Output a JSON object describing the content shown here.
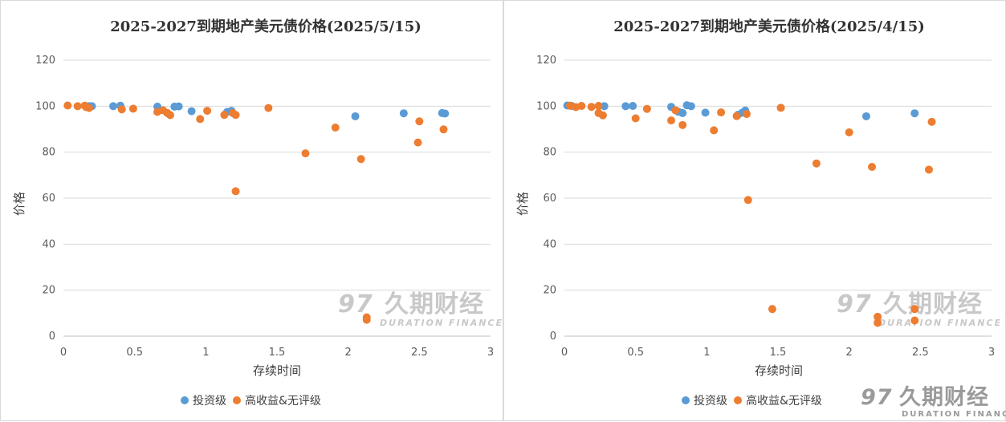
{
  "chart_data": [
    {
      "type": "scatter",
      "title": "2025-2027到期地产美元债价格(2025/5/15)",
      "xlabel": "存续时间",
      "ylabel": "价格",
      "xlim": [
        0,
        3
      ],
      "ylim": [
        0,
        120
      ],
      "xticks": [
        "0",
        "0.5",
        "1",
        "1.5",
        "2",
        "2.5",
        "3"
      ],
      "yticks": [
        "0",
        "20",
        "40",
        "60",
        "80",
        "100",
        "120"
      ],
      "grid": true,
      "legend_position": "bottom",
      "series": [
        {
          "name": "投资级",
          "color": "#5b9bd5",
          "points": [
            [
              0.18,
              100
            ],
            [
              0.2,
              100
            ],
            [
              0.35,
              100
            ],
            [
              0.4,
              100.2
            ],
            [
              0.66,
              99.8
            ],
            [
              0.78,
              99.8
            ],
            [
              0.81,
              99.9
            ],
            [
              0.9,
              97.8
            ],
            [
              1.15,
              97.5
            ],
            [
              1.18,
              98
            ],
            [
              2.05,
              95.6
            ],
            [
              2.39,
              96.9
            ],
            [
              2.66,
              97
            ],
            [
              2.68,
              96.8
            ]
          ]
        },
        {
          "name": "高收益&无评级",
          "color": "#ed7d31",
          "points": [
            [
              0.03,
              100.3
            ],
            [
              0.1,
              100
            ],
            [
              0.15,
              100.2
            ],
            [
              0.16,
              99.6
            ],
            [
              0.18,
              99.2
            ],
            [
              0.41,
              98.6
            ],
            [
              0.49,
              98.9
            ],
            [
              0.66,
              97.5
            ],
            [
              0.7,
              98.2
            ],
            [
              0.73,
              97
            ],
            [
              0.75,
              96.1
            ],
            [
              0.96,
              94.4
            ],
            [
              1.01,
              98
            ],
            [
              1.13,
              96.2
            ],
            [
              1.19,
              97
            ],
            [
              1.21,
              96.2
            ],
            [
              1.21,
              63
            ],
            [
              1.44,
              99.2
            ],
            [
              1.7,
              79.5
            ],
            [
              1.91,
              90.7
            ],
            [
              2.09,
              77
            ],
            [
              2.13,
              8.2
            ],
            [
              2.13,
              7.1
            ],
            [
              2.49,
              84.2
            ],
            [
              2.5,
              93.4
            ],
            [
              2.67,
              89.9
            ]
          ]
        }
      ]
    },
    {
      "type": "scatter",
      "title": "2025-2027到期地产美元债价格(2025/4/15)",
      "xlabel": "存续时间",
      "ylabel": "价格",
      "xlim": [
        0,
        3
      ],
      "ylim": [
        0,
        120
      ],
      "xticks": [
        "0",
        "0.5",
        "1",
        "1.5",
        "2",
        "2.5",
        "3"
      ],
      "yticks": [
        "0",
        "20",
        "40",
        "60",
        "80",
        "100",
        "120"
      ],
      "grid": true,
      "legend_position": "bottom",
      "series": [
        {
          "name": "投资级",
          "color": "#5b9bd5",
          "points": [
            [
              0.02,
              100.3
            ],
            [
              0.05,
              100.1
            ],
            [
              0.28,
              100
            ],
            [
              0.43,
              100
            ],
            [
              0.48,
              100.1
            ],
            [
              0.75,
              99.7
            ],
            [
              0.8,
              97.6
            ],
            [
              0.83,
              97
            ],
            [
              0.86,
              100.4
            ],
            [
              0.89,
              100
            ],
            [
              0.99,
              97.2
            ],
            [
              1.22,
              96.3
            ],
            [
              1.25,
              97.2
            ],
            [
              1.27,
              98.1
            ],
            [
              2.12,
              95.6
            ],
            [
              2.46,
              96.9
            ]
          ]
        },
        {
          "name": "高收益&无评级",
          "color": "#ed7d31",
          "points": [
            [
              0.04,
              100.2
            ],
            [
              0.08,
              99.6
            ],
            [
              0.12,
              100.1
            ],
            [
              0.19,
              99.7
            ],
            [
              0.24,
              100.1
            ],
            [
              0.24,
              97
            ],
            [
              0.27,
              96
            ],
            [
              0.5,
              94.7
            ],
            [
              0.58,
              98.8
            ],
            [
              0.75,
              93.8
            ],
            [
              0.78,
              98.2
            ],
            [
              0.83,
              91.8
            ],
            [
              1.05,
              89.5
            ],
            [
              1.1,
              97.3
            ],
            [
              1.21,
              95.7
            ],
            [
              1.28,
              96.6
            ],
            [
              1.29,
              59.2
            ],
            [
              1.46,
              11.8
            ],
            [
              1.52,
              99.3
            ],
            [
              1.77,
              75.1
            ],
            [
              2.0,
              88.6
            ],
            [
              2.16,
              73.6
            ],
            [
              2.2,
              8.4
            ],
            [
              2.2,
              5.8
            ],
            [
              2.46,
              11.8
            ],
            [
              2.46,
              6.8
            ],
            [
              2.56,
              72.4
            ],
            [
              2.58,
              93.2
            ]
          ]
        }
      ]
    }
  ],
  "watermark": {
    "cn": "久期财经",
    "en": "DURATION FINANCE"
  },
  "brand": {
    "cn": "久期财经",
    "en": "DURATION FINANCE"
  }
}
